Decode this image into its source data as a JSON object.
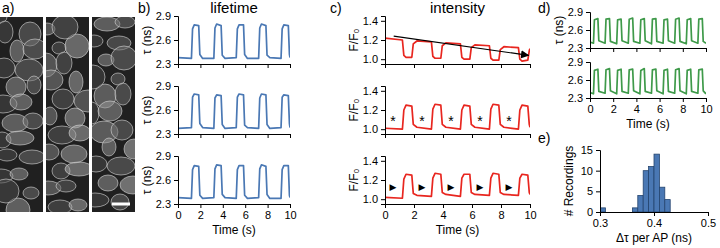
{
  "panel_labels": [
    "a)",
    "b)",
    "c)",
    "d)",
    "e)"
  ],
  "chart_data": [
    {
      "type": "line",
      "title": "lifetime",
      "ylabel": "τ (ns)",
      "color": "#4a78b4",
      "x": [
        0,
        1.2,
        1.3,
        1.45,
        1.85,
        1.95,
        2.2,
        3.2,
        3.3,
        3.45,
        3.85,
        3.95,
        4.2,
        5.2,
        5.3,
        5.45,
        5.85,
        5.95,
        6.2,
        7.2,
        7.3,
        7.45,
        7.85,
        7.95,
        8.2,
        9.2,
        9.3,
        9.45,
        9.85,
        9.95,
        10
      ],
      "values": [
        2.38,
        2.37,
        2.74,
        2.79,
        2.78,
        2.42,
        2.37,
        2.37,
        2.75,
        2.8,
        2.78,
        2.41,
        2.37,
        2.38,
        2.74,
        2.79,
        2.79,
        2.42,
        2.37,
        2.37,
        2.75,
        2.8,
        2.78,
        2.41,
        2.38,
        2.37,
        2.74,
        2.79,
        2.78,
        2.42,
        2.38
      ],
      "xlim": [
        0,
        10
      ],
      "xticks": [
        0,
        2,
        4,
        6,
        8,
        10
      ],
      "ylim": [
        2.3,
        2.9
      ],
      "yticks": [
        2.3,
        2.6,
        2.9
      ],
      "tick_labels": "y"
    },
    {
      "type": "line",
      "ylabel": "τ (ns)",
      "color": "#4a78b4",
      "x": [
        0,
        1.2,
        1.3,
        1.45,
        1.85,
        1.95,
        2.2,
        3.2,
        3.3,
        3.45,
        3.85,
        3.95,
        4.2,
        5.2,
        5.3,
        5.45,
        5.85,
        5.95,
        6.2,
        7.2,
        7.3,
        7.45,
        7.85,
        7.95,
        8.2,
        9.2,
        9.3,
        9.45,
        9.85,
        9.95,
        10
      ],
      "values": [
        2.37,
        2.38,
        2.76,
        2.8,
        2.79,
        2.43,
        2.38,
        2.37,
        2.75,
        2.79,
        2.78,
        2.42,
        2.37,
        2.38,
        2.76,
        2.8,
        2.79,
        2.41,
        2.38,
        2.37,
        2.75,
        2.8,
        2.79,
        2.42,
        2.37,
        2.38,
        2.76,
        2.79,
        2.78,
        2.43,
        2.38
      ],
      "xlim": [
        0,
        10
      ],
      "xticks": [
        0,
        2,
        4,
        6,
        8,
        10
      ],
      "ylim": [
        2.3,
        2.9
      ],
      "yticks": [
        2.3,
        2.6,
        2.9
      ],
      "tick_labels": "y"
    },
    {
      "type": "line",
      "ylabel": "τ (ns)",
      "xlabel": "Time (s)",
      "color": "#4a78b4",
      "x": [
        0,
        1.2,
        1.3,
        1.45,
        1.85,
        1.95,
        2.2,
        3.2,
        3.3,
        3.45,
        3.85,
        3.95,
        4.2,
        5.2,
        5.3,
        5.45,
        5.85,
        5.95,
        6.2,
        7.2,
        7.3,
        7.45,
        7.85,
        7.95,
        8.2,
        9.2,
        9.3,
        9.45,
        9.85,
        9.95,
        10
      ],
      "values": [
        2.38,
        2.37,
        2.73,
        2.78,
        2.77,
        2.41,
        2.37,
        2.38,
        2.74,
        2.79,
        2.78,
        2.42,
        2.38,
        2.37,
        2.73,
        2.78,
        2.78,
        2.41,
        2.37,
        2.38,
        2.74,
        2.79,
        2.77,
        2.42,
        2.37,
        2.37,
        2.73,
        2.78,
        2.78,
        2.41,
        2.38
      ],
      "xlim": [
        0,
        10
      ],
      "xticks": [
        0,
        2,
        4,
        6,
        8,
        10
      ],
      "ylim": [
        2.3,
        2.9
      ],
      "yticks": [
        2.3,
        2.6,
        2.9
      ]
    },
    {
      "type": "line",
      "title": "intensity",
      "ylabel": "F/F₀",
      "color": "#e8261f",
      "x": [
        0,
        1.2,
        1.3,
        1.45,
        1.85,
        1.95,
        2.2,
        3.2,
        3.3,
        3.45,
        3.85,
        3.95,
        4.2,
        5.2,
        5.3,
        5.45,
        5.85,
        5.95,
        6.2,
        7.2,
        7.3,
        7.45,
        7.85,
        7.95,
        8.2,
        9.2,
        9.3,
        9.45,
        9.85,
        9.95,
        10
      ],
      "values": [
        1.22,
        1.2,
        1.04,
        1.02,
        1.02,
        1.16,
        1.19,
        1.18,
        1.03,
        1.01,
        1.01,
        1.14,
        1.17,
        1.16,
        1.02,
        1.0,
        1.0,
        1.12,
        1.15,
        1.14,
        1.01,
        0.99,
        0.99,
        1.1,
        1.13,
        1.12,
        1.0,
        0.98,
        0.99,
        1.09,
        1.11
      ],
      "arrow": {
        "x": [
          0.6,
          9.9
        ],
        "y": [
          1.24,
          1.04
        ]
      },
      "xlim": [
        0,
        10
      ],
      "xticks": [
        0,
        2,
        4,
        6,
        8,
        10
      ],
      "ylim": [
        0.95,
        1.45
      ],
      "yticks": [
        {
          "value": 1.0,
          "label": "1.0"
        },
        1.2,
        1.4
      ],
      "tick_labels": "y"
    },
    {
      "type": "line",
      "ylabel": "F/F₀",
      "color": "#e8261f",
      "x": [
        0,
        1.2,
        1.3,
        1.45,
        1.85,
        1.95,
        2.2,
        3.2,
        3.3,
        3.45,
        3.85,
        3.95,
        4.2,
        5.2,
        5.3,
        5.45,
        5.85,
        5.95,
        6.2,
        7.2,
        7.3,
        7.45,
        7.85,
        7.95,
        8.2,
        9.2,
        9.3,
        9.45,
        9.85,
        9.95,
        10
      ],
      "values": [
        1.01,
        1.0,
        1.2,
        1.25,
        1.24,
        1.05,
        1.02,
        1.0,
        1.21,
        1.26,
        1.25,
        1.05,
        1.02,
        1.0,
        1.2,
        1.25,
        1.24,
        1.05,
        1.02,
        1.0,
        1.21,
        1.26,
        1.25,
        1.05,
        1.02,
        1.0,
        1.2,
        1.25,
        1.24,
        1.05,
        1.02
      ],
      "annotations": [
        {
          "text": "*",
          "x": 0.55,
          "y": 1.09
        },
        {
          "text": "*",
          "x": 2.55,
          "y": 1.09
        },
        {
          "text": "*",
          "x": 4.55,
          "y": 1.09
        },
        {
          "text": "*",
          "x": 6.55,
          "y": 1.09
        },
        {
          "text": "*",
          "x": 8.55,
          "y": 1.09
        }
      ],
      "xlim": [
        0,
        10
      ],
      "xticks": [
        0,
        2,
        4,
        6,
        8,
        10
      ],
      "ylim": [
        0.95,
        1.45
      ],
      "yticks": [
        {
          "value": 1.0,
          "label": "1.0"
        },
        1.2,
        1.4
      ],
      "tick_labels": "y"
    },
    {
      "type": "line",
      "ylabel": "F/F₀",
      "xlabel": "Time (s)",
      "color": "#e8261f",
      "x": [
        0,
        1.2,
        1.3,
        1.45,
        1.85,
        1.95,
        2.2,
        3.2,
        3.3,
        3.45,
        3.85,
        3.95,
        4.2,
        5.2,
        5.3,
        5.45,
        5.85,
        5.95,
        6.2,
        7.2,
        7.3,
        7.45,
        7.85,
        7.95,
        8.2,
        9.2,
        9.3,
        9.45,
        9.85,
        9.95,
        10
      ],
      "values": [
        1.02,
        1.01,
        1.21,
        1.26,
        1.25,
        1.06,
        1.04,
        1.03,
        1.22,
        1.27,
        1.26,
        1.07,
        1.05,
        1.03,
        1.22,
        1.26,
        1.26,
        1.07,
        1.05,
        1.04,
        1.22,
        1.27,
        1.26,
        1.07,
        1.05,
        1.04,
        1.22,
        1.26,
        1.25,
        1.07,
        1.05
      ],
      "annotations": [
        {
          "text": "▶",
          "x": 0.55,
          "y": 1.13
        },
        {
          "text": "▶",
          "x": 2.55,
          "y": 1.13
        },
        {
          "text": "▶",
          "x": 4.55,
          "y": 1.13
        },
        {
          "text": "▶",
          "x": 6.55,
          "y": 1.13
        },
        {
          "text": "▶",
          "x": 8.55,
          "y": 1.13
        }
      ],
      "xlim": [
        0,
        10
      ],
      "xticks": [
        0,
        2,
        4,
        6,
        8,
        10
      ],
      "ylim": [
        0.95,
        1.45
      ],
      "yticks": [
        {
          "value": 1.0,
          "label": "1.0"
        },
        1.2,
        1.4
      ]
    },
    {
      "type": "line",
      "ylabel": "τ (ns)",
      "color": "#3f9a4a",
      "x": [
        0,
        0.3,
        0.38,
        0.68,
        0.76,
        1.3,
        1.38,
        1.68,
        1.76,
        2.3,
        2.38,
        2.68,
        2.76,
        3.3,
        3.38,
        3.68,
        3.76,
        4.3,
        4.38,
        4.68,
        4.76,
        5.3,
        5.38,
        5.68,
        5.76,
        6.3,
        6.38,
        6.68,
        6.76,
        7.3,
        7.38,
        7.68,
        7.76,
        8.3,
        8.38,
        8.68,
        8.76,
        9.3,
        9.38,
        9.68,
        9.76,
        10
      ],
      "values": [
        2.4,
        2.38,
        2.77,
        2.79,
        2.42,
        2.38,
        2.78,
        2.79,
        2.41,
        2.37,
        2.77,
        2.78,
        2.42,
        2.38,
        2.78,
        2.8,
        2.41,
        2.38,
        2.77,
        2.79,
        2.42,
        2.37,
        2.78,
        2.79,
        2.41,
        2.38,
        2.77,
        2.78,
        2.42,
        2.38,
        2.78,
        2.8,
        2.41,
        2.37,
        2.77,
        2.79,
        2.42,
        2.38,
        2.78,
        2.79,
        2.41,
        2.38
      ],
      "xlim": [
        0,
        10
      ],
      "xticks": [
        0,
        2,
        4,
        6,
        8,
        10
      ],
      "ylim": [
        2.3,
        2.9
      ],
      "yticks": [
        2.3,
        2.6,
        2.9
      ],
      "tick_labels": "y"
    },
    {
      "type": "line",
      "xlabel": "Time (s)",
      "color": "#3f9a4a",
      "x": [
        0,
        0.3,
        0.38,
        0.68,
        0.76,
        1.3,
        1.38,
        1.68,
        1.76,
        2.3,
        2.38,
        2.68,
        2.76,
        3.3,
        3.38,
        3.68,
        3.76,
        4.3,
        4.38,
        4.68,
        4.76,
        5.3,
        5.38,
        5.68,
        5.76,
        6.3,
        6.38,
        6.68,
        6.76,
        7.3,
        7.38,
        7.68,
        7.76,
        8.3,
        8.38,
        8.68,
        8.76,
        9.3,
        9.38,
        9.68,
        9.76,
        10
      ],
      "values": [
        2.39,
        2.37,
        2.76,
        2.78,
        2.41,
        2.38,
        2.77,
        2.79,
        2.42,
        2.37,
        2.76,
        2.78,
        2.41,
        2.38,
        2.77,
        2.78,
        2.42,
        2.37,
        2.76,
        2.79,
        2.41,
        2.38,
        2.77,
        2.78,
        2.42,
        2.37,
        2.76,
        2.78,
        2.41,
        2.38,
        2.77,
        2.79,
        2.42,
        2.37,
        2.76,
        2.78,
        2.41,
        2.38,
        2.77,
        2.78,
        2.42,
        2.37
      ],
      "xlim": [
        0,
        10
      ],
      "xticks": [
        0,
        2,
        4,
        6,
        8,
        10
      ],
      "ylim": [
        2.3,
        2.9
      ],
      "yticks": [
        2.3,
        2.6,
        2.9
      ]
    },
    {
      "type": "histogram",
      "xlabel": "Δτ per AP (ns)",
      "ylabel": "# Recordings",
      "color": "#4a78b4",
      "bins": [
        0.3,
        0.31,
        0.32,
        0.33,
        0.34,
        0.35,
        0.36,
        0.37,
        0.38,
        0.39,
        0.4,
        0.41,
        0.42,
        0.43
      ],
      "counts": [
        1,
        0,
        0,
        0,
        0,
        0,
        1,
        4,
        10,
        11,
        14,
        6,
        3
      ],
      "xlim": [
        0.3,
        0.5
      ],
      "xticks": [
        0.3,
        0.4,
        0.5
      ],
      "ylim": [
        0,
        15
      ],
      "yticks": [
        0,
        5,
        10,
        15
      ]
    }
  ]
}
